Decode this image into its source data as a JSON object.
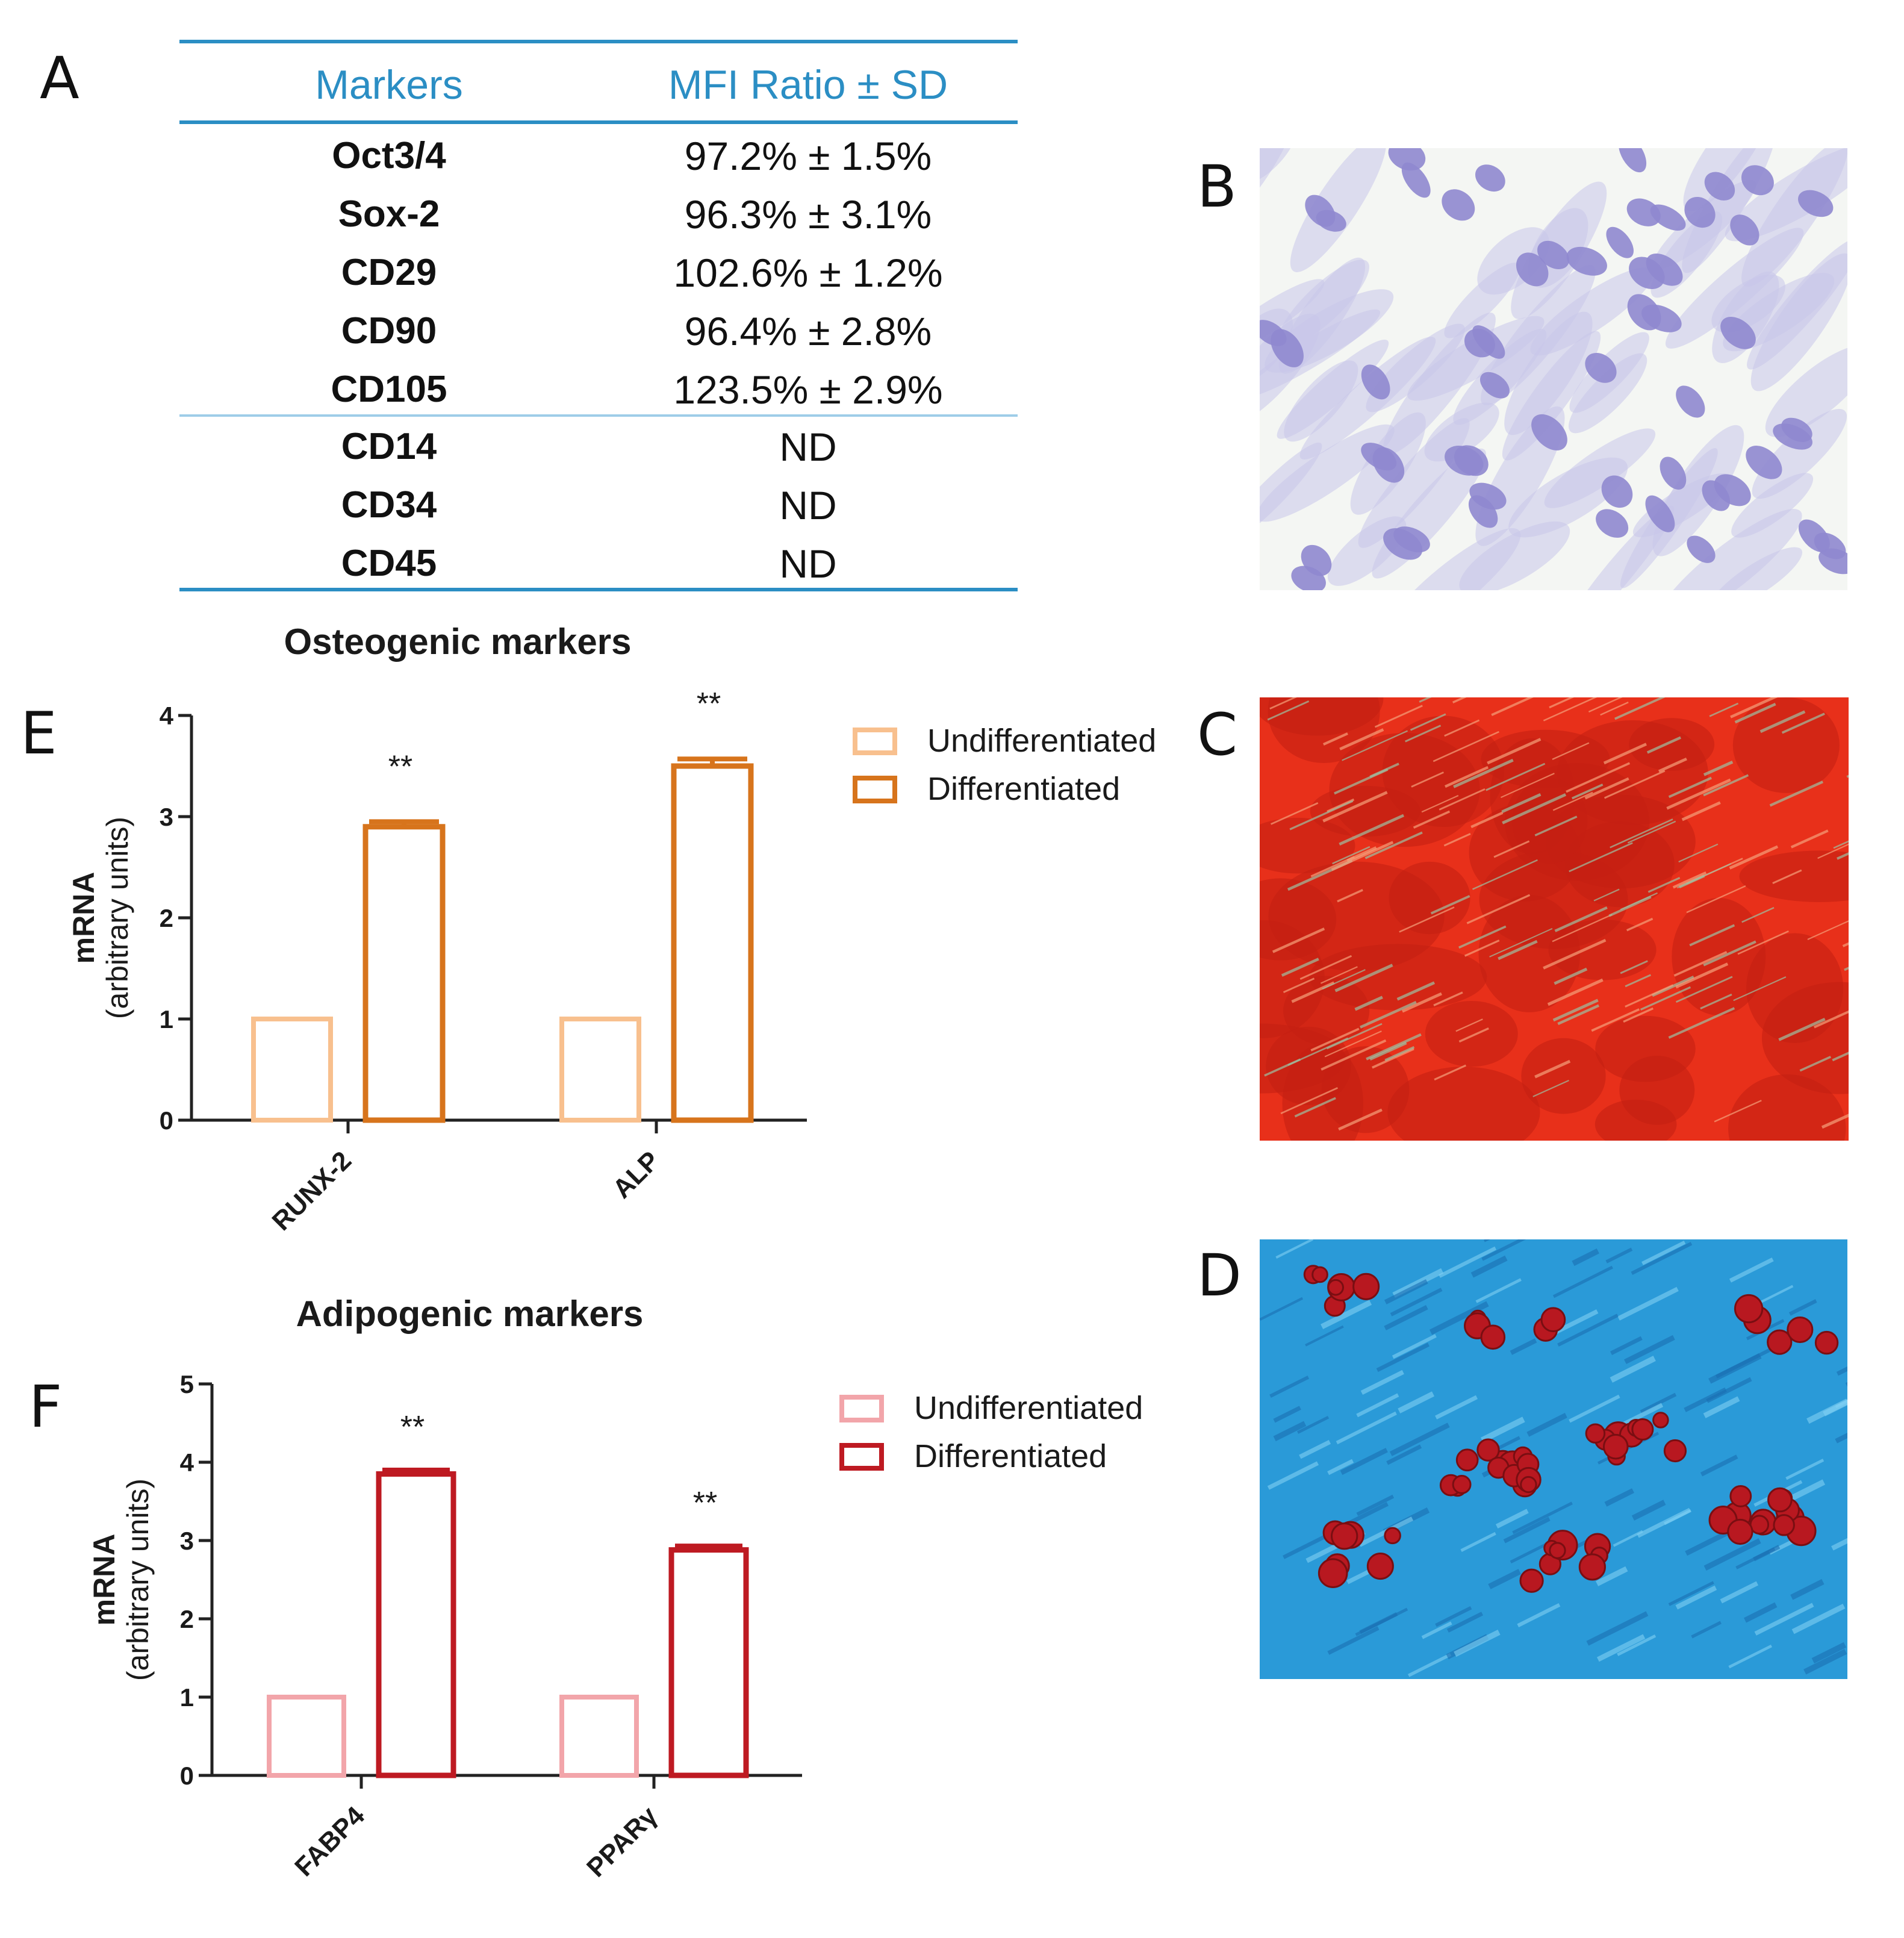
{
  "panels": {
    "a": "A",
    "b": "B",
    "c": "C",
    "d": "D",
    "e": "E",
    "f": "F"
  },
  "table": {
    "headers": [
      "Markers",
      "MFI Ratio ± SD"
    ],
    "rows": [
      {
        "marker": "Oct3/4",
        "value": "97.2% ± 1.5%"
      },
      {
        "marker": "Sox-2",
        "value": "96.3% ± 3.1%"
      },
      {
        "marker": "CD29",
        "value": "102.6% ± 1.2%"
      },
      {
        "marker": "CD90",
        "value": "96.4% ± 2.8%"
      },
      {
        "marker": "CD105",
        "value": "123.5% ± 2.9%"
      },
      {
        "marker": "CD14",
        "value": "ND"
      },
      {
        "marker": "CD34",
        "value": "ND"
      },
      {
        "marker": "CD45",
        "value": "ND"
      }
    ],
    "colors": {
      "header_text": "#2b8ec4",
      "rule": "#2b8ec4",
      "divider": "#9ecde8"
    }
  },
  "chart_data": [
    {
      "id": "E",
      "type": "bar",
      "title": "Osteogenic markers",
      "ylabel": "mRNA (arbitrary units)",
      "ylabel_lines": [
        "mRNA",
        "(arbitrary units)"
      ],
      "xlabel": "",
      "categories": [
        "RUNX-2",
        "ALP"
      ],
      "ylim": [
        0,
        4
      ],
      "yticks": [
        0,
        1,
        2,
        3,
        4
      ],
      "series": [
        {
          "name": "Undifferentiated",
          "values": [
            1.0,
            1.0
          ],
          "color": "#f8c08e"
        },
        {
          "name": "Differentiated",
          "values": [
            2.9,
            3.5
          ],
          "errors": [
            0.05,
            0.07
          ],
          "color": "#d7741c"
        }
      ],
      "annotations": [
        "**",
        "**"
      ],
      "legend_position": "right"
    },
    {
      "id": "F",
      "type": "bar",
      "title": "Adipogenic markers",
      "ylabel": "mRNA (arbitrary units)",
      "ylabel_lines": [
        "mRNA",
        "(arbitrary units)"
      ],
      "xlabel": "",
      "categories": [
        "FABP4",
        "PPARγ"
      ],
      "ylim": [
        0,
        5
      ],
      "yticks": [
        0,
        1,
        2,
        3,
        4,
        5
      ],
      "series": [
        {
          "name": "Undifferentiated",
          "values": [
            1.0,
            1.0
          ],
          "color": "#f2a5aa"
        },
        {
          "name": "Differentiated",
          "values": [
            3.85,
            2.88
          ],
          "errors": [
            0.05,
            0.05
          ],
          "color": "#be1a22"
        }
      ],
      "annotations": [
        "**",
        "**"
      ],
      "legend_position": "right"
    }
  ],
  "images": [
    {
      "panel": "B",
      "subject": "micrograph-purple-stained-cells",
      "colors": [
        "#f4f6f3",
        "#8f88cf",
        "#5e56a8"
      ]
    },
    {
      "panel": "C",
      "subject": "micrograph-alizarin-red-staining",
      "colors": [
        "#e8301a",
        "#c51f12",
        "#9ec0a2"
      ]
    },
    {
      "panel": "D",
      "subject": "micrograph-oil-red-o-staining",
      "colors": [
        "#2a9ad8",
        "#1a6fb3",
        "#b81820"
      ]
    }
  ]
}
